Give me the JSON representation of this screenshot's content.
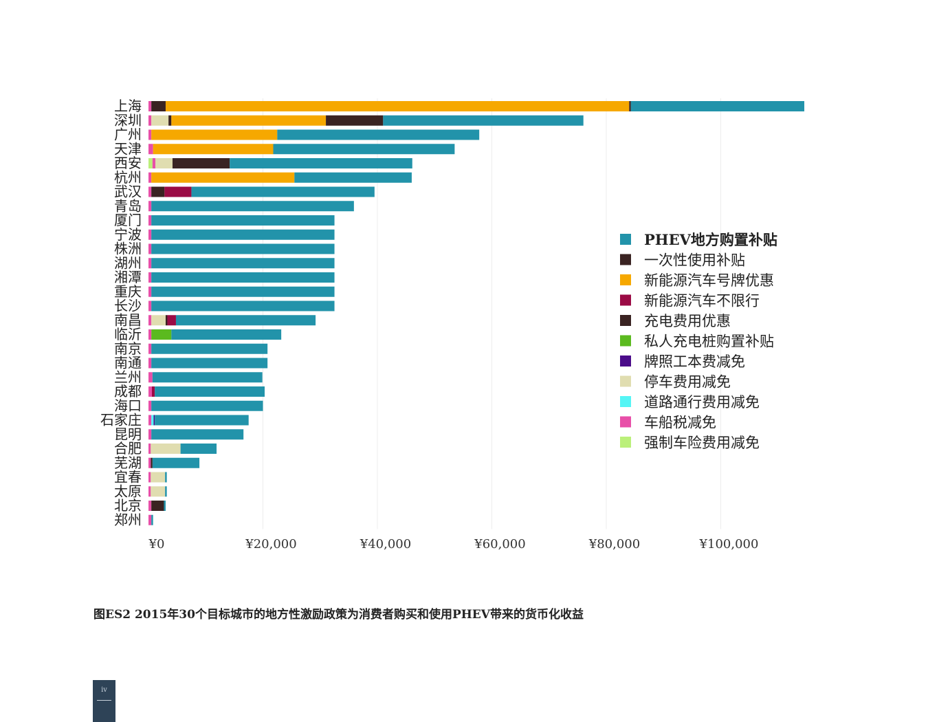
{
  "chart_data": {
    "type": "bar",
    "orientation": "horizontal",
    "stacked": true,
    "title": "",
    "xlabel": "",
    "ylabel": "",
    "xlim": [
      0,
      115000
    ],
    "x_ticks": [
      0,
      20000,
      40000,
      60000,
      80000,
      100000
    ],
    "x_tick_labels": [
      "¥0",
      "¥20,000",
      "¥40,000",
      "¥60,000",
      "¥80,000",
      "¥100,000"
    ],
    "grid": "vertical",
    "legend_position": "right",
    "categories": [
      "上海",
      "深圳",
      "广州",
      "天津",
      "西安",
      "杭州",
      "武汉",
      "青岛",
      "厦门",
      "宁波",
      "株洲",
      "湖州",
      "湘潭",
      "重庆",
      "长沙",
      "南昌",
      "临沂",
      "南京",
      "南通",
      "兰州",
      "成都",
      "海口",
      "石家庄",
      "昆明",
      "合肥",
      "芜湖",
      "宜春",
      "太原",
      "北京",
      "郑州"
    ],
    "series": [
      {
        "name": "强制车险费用减免",
        "color": "#bbf07a",
        "values": [
          0,
          0,
          0,
          0,
          700,
          0,
          0,
          0,
          0,
          0,
          0,
          0,
          0,
          0,
          0,
          0,
          0,
          0,
          0,
          0,
          0,
          0,
          0,
          0,
          0,
          0,
          0,
          0,
          0,
          0
        ]
      },
      {
        "name": "车船税减免",
        "color": "#e84fa8",
        "values": [
          500,
          500,
          500,
          800,
          500,
          500,
          500,
          500,
          500,
          500,
          500,
          500,
          500,
          500,
          500,
          500,
          500,
          500,
          500,
          700,
          600,
          500,
          500,
          500,
          400,
          400,
          400,
          400,
          500,
          500
        ]
      },
      {
        "name": "道路通行费用减免",
        "color": "#55f5f5",
        "values": [
          0,
          0,
          0,
          0,
          0,
          0,
          0,
          0,
          0,
          0,
          0,
          0,
          0,
          0,
          0,
          0,
          0,
          0,
          0,
          0,
          0,
          0,
          400,
          0,
          0,
          0,
          0,
          0,
          0,
          0
        ]
      },
      {
        "name": "停车费用减免",
        "color": "#e0ddb0",
        "values": [
          0,
          3000,
          0,
          0,
          3000,
          0,
          0,
          0,
          0,
          0,
          0,
          0,
          0,
          0,
          0,
          2500,
          0,
          0,
          0,
          0,
          0,
          0,
          0,
          0,
          5200,
          0,
          2500,
          2500,
          0,
          0
        ]
      },
      {
        "name": "牌照工本费减免",
        "color": "#4b0c8a",
        "values": [
          0,
          0,
          0,
          0,
          0,
          0,
          0,
          0,
          0,
          0,
          0,
          0,
          0,
          0,
          0,
          0,
          0,
          0,
          0,
          0,
          0,
          0,
          200,
          0,
          0,
          0,
          0,
          0,
          0,
          0
        ]
      },
      {
        "name": "私人充电桩购置补贴",
        "color": "#5bba1f",
        "values": [
          0,
          0,
          0,
          0,
          0,
          0,
          0,
          0,
          0,
          0,
          0,
          0,
          0,
          0,
          0,
          0,
          3500,
          0,
          0,
          0,
          0,
          0,
          0,
          0,
          0,
          0,
          0,
          0,
          0,
          0
        ]
      },
      {
        "name": "充电费用优惠",
        "color": "#3a2322",
        "values": [
          2500,
          500,
          0,
          0,
          10000,
          0,
          2300,
          0,
          0,
          0,
          0,
          0,
          0,
          0,
          0,
          300,
          0,
          0,
          0,
          0,
          0,
          0,
          0,
          0,
          0,
          300,
          0,
          0,
          2200,
          0
        ]
      },
      {
        "name": "新能源汽车不限行",
        "color": "#9b0b45",
        "values": [
          0,
          0,
          0,
          0,
          0,
          0,
          4700,
          0,
          0,
          0,
          0,
          0,
          0,
          0,
          0,
          1500,
          0,
          0,
          0,
          0,
          500,
          0,
          0,
          0,
          0,
          0,
          0,
          0,
          0,
          0
        ]
      },
      {
        "name": "新能源汽车号牌优惠",
        "color": "#f6a800",
        "values": [
          81000,
          27000,
          22000,
          21000,
          0,
          25000,
          0,
          0,
          0,
          0,
          0,
          0,
          0,
          0,
          0,
          0,
          0,
          0,
          0,
          0,
          0,
          0,
          0,
          0,
          0,
          0,
          0,
          0,
          0,
          0
        ]
      },
      {
        "name": "一次性使用补贴",
        "color": "#3a2322",
        "values": [
          300,
          10000,
          0,
          0,
          0,
          0,
          0,
          0,
          0,
          0,
          0,
          0,
          0,
          0,
          0,
          0,
          0,
          0,
          0,
          0,
          0,
          0,
          0,
          0,
          0,
          0,
          0,
          0,
          0,
          0
        ]
      },
      {
        "name": "PHEV地方购置补贴",
        "color": "#2293aa",
        "values": [
          30300,
          35000,
          35300,
          31700,
          31900,
          20500,
          32000,
          35400,
          32000,
          32000,
          32000,
          32000,
          32000,
          32000,
          32000,
          24400,
          19200,
          20300,
          20300,
          19200,
          19200,
          19500,
          16400,
          16100,
          6300,
          8200,
          300,
          300,
          300,
          300
        ]
      }
    ],
    "legend_order": [
      "PHEV地方购置补贴",
      "一次性使用补贴",
      "新能源汽车号牌优惠",
      "新能源汽车不限行",
      "充电费用优惠",
      "私人充电桩购置补贴",
      "牌照工本费减免",
      "停车费用减免",
      "道路通行费用减免",
      "车船税减免",
      "强制车险费用减免"
    ],
    "legend_colors": [
      "#2293aa",
      "#3a2322",
      "#f6a800",
      "#9b0b45",
      "#3a2322",
      "#5bba1f",
      "#4b0c8a",
      "#e0ddb0",
      "#55f5f5",
      "#e84fa8",
      "#bbf07a"
    ]
  },
  "caption": "图ES2  2015年30个目标城市的地方性激励政策为消费者购买和使用PHEV带来的货币化收益",
  "page_number": "iv"
}
